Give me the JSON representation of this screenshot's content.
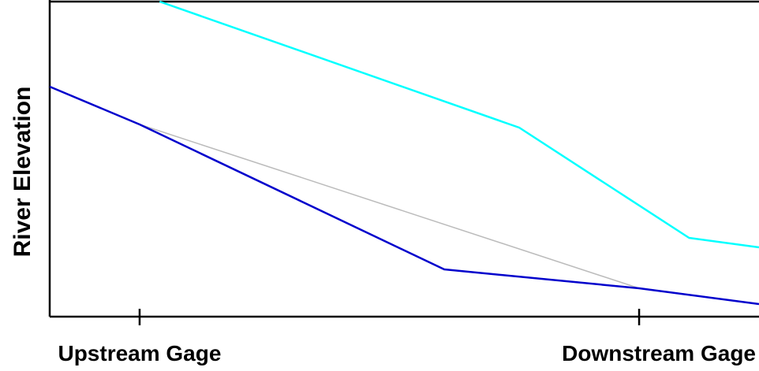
{
  "chart_data": {
    "type": "line",
    "ylabel": "River Elevation",
    "xlabel": "",
    "x_ticks": [
      {
        "x": 0,
        "label": "Upstream Gage"
      },
      {
        "x": 1,
        "label": "Downstream Gage"
      }
    ],
    "xlim": [
      -0.18,
      1.24
    ],
    "ylim": [
      0,
      100
    ],
    "grid": false,
    "legend": "none",
    "series": [
      {
        "color": "#00ffff",
        "points": [
          [
            0.04,
            100
          ],
          [
            0.76,
            60
          ],
          [
            1.1,
            25
          ],
          [
            1.24,
            22
          ]
        ]
      },
      {
        "color": "#0000cc",
        "points": [
          [
            -0.18,
            73
          ],
          [
            0.0,
            61
          ],
          [
            0.61,
            15
          ],
          [
            1.0,
            9
          ],
          [
            1.24,
            4
          ]
        ]
      },
      {
        "color": "#bbbbbb",
        "points": [
          [
            0.0,
            61
          ],
          [
            1.0,
            9
          ]
        ]
      }
    ]
  }
}
